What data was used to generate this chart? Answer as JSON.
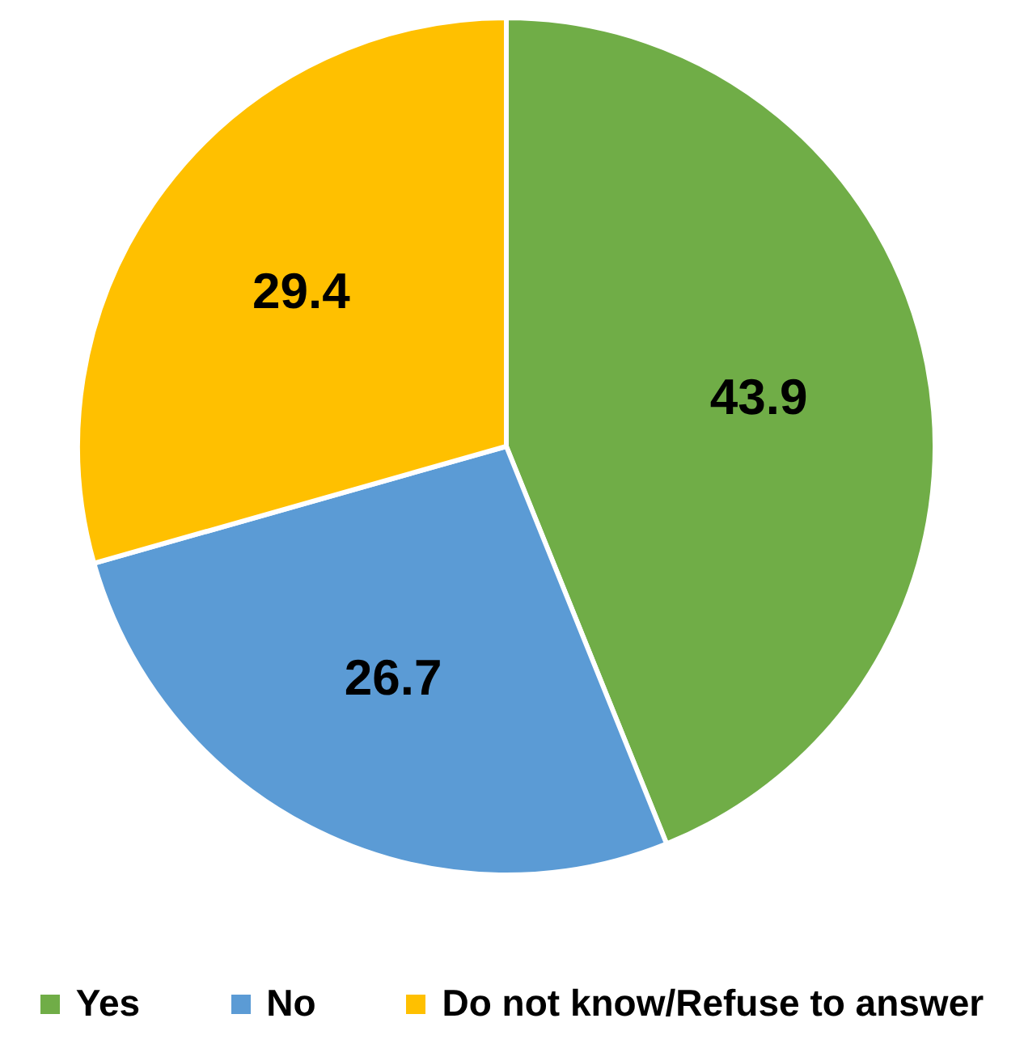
{
  "chart_data": {
    "type": "pie",
    "categories": [
      "Yes",
      "No",
      "Do not know/Refuse to answer"
    ],
    "values": [
      43.9,
      26.7,
      29.4
    ],
    "colors": [
      "#70ad47",
      "#5b9bd5",
      "#ffc000"
    ],
    "data_labels": true,
    "legend": "bottom"
  }
}
